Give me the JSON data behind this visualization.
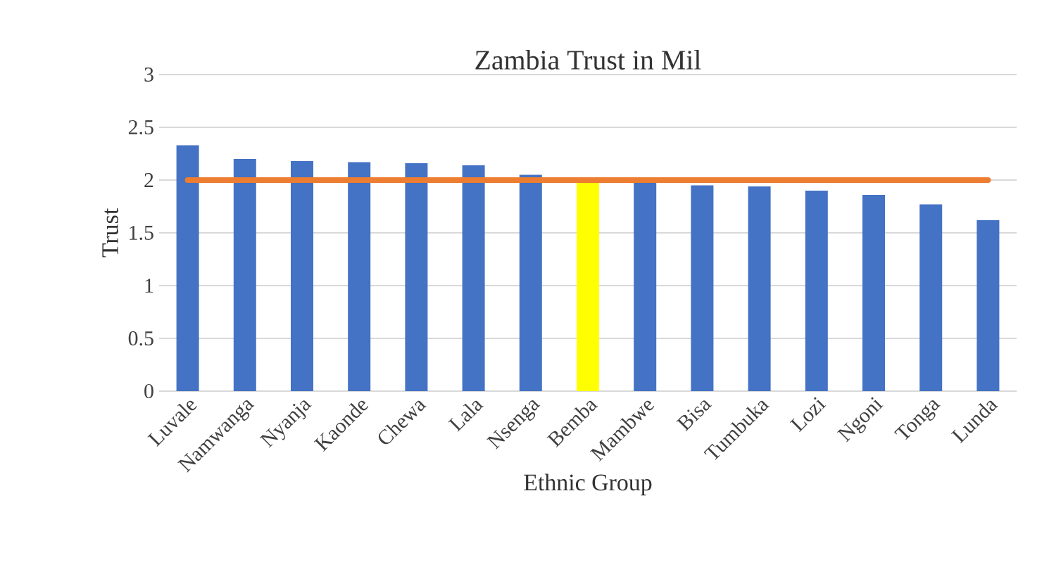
{
  "chart_data": {
    "type": "bar",
    "title": "Zambia Trust in Mil",
    "xlabel": "Ethnic Group",
    "ylabel": "Trust",
    "categories": [
      "Luvale",
      "Namwanga",
      "Nyanja",
      "Kaonde",
      "Chewa",
      "Lala",
      "Nsenga",
      "Bemba",
      "Mambwe",
      "Bisa",
      "Tumbuka",
      "Lozi",
      "Ngoni",
      "Tonga",
      "Lunda"
    ],
    "values": [
      2.33,
      2.2,
      2.18,
      2.17,
      2.16,
      2.14,
      2.05,
      2.0,
      1.98,
      1.95,
      1.94,
      1.9,
      1.86,
      1.77,
      1.62
    ],
    "colors": [
      "#4472c4",
      "#4472c4",
      "#4472c4",
      "#4472c4",
      "#4472c4",
      "#4472c4",
      "#4472c4",
      "#ffff00",
      "#4472c4",
      "#4472c4",
      "#4472c4",
      "#4472c4",
      "#4472c4",
      "#4472c4",
      "#4472c4"
    ],
    "ylim": [
      0,
      3
    ],
    "yticks": [
      0,
      0.5,
      1,
      1.5,
      2,
      2.5,
      3
    ],
    "grid": "y",
    "ref_lines": [
      {
        "axis": "y",
        "value": 2,
        "color": "#ed7d31"
      }
    ]
  }
}
